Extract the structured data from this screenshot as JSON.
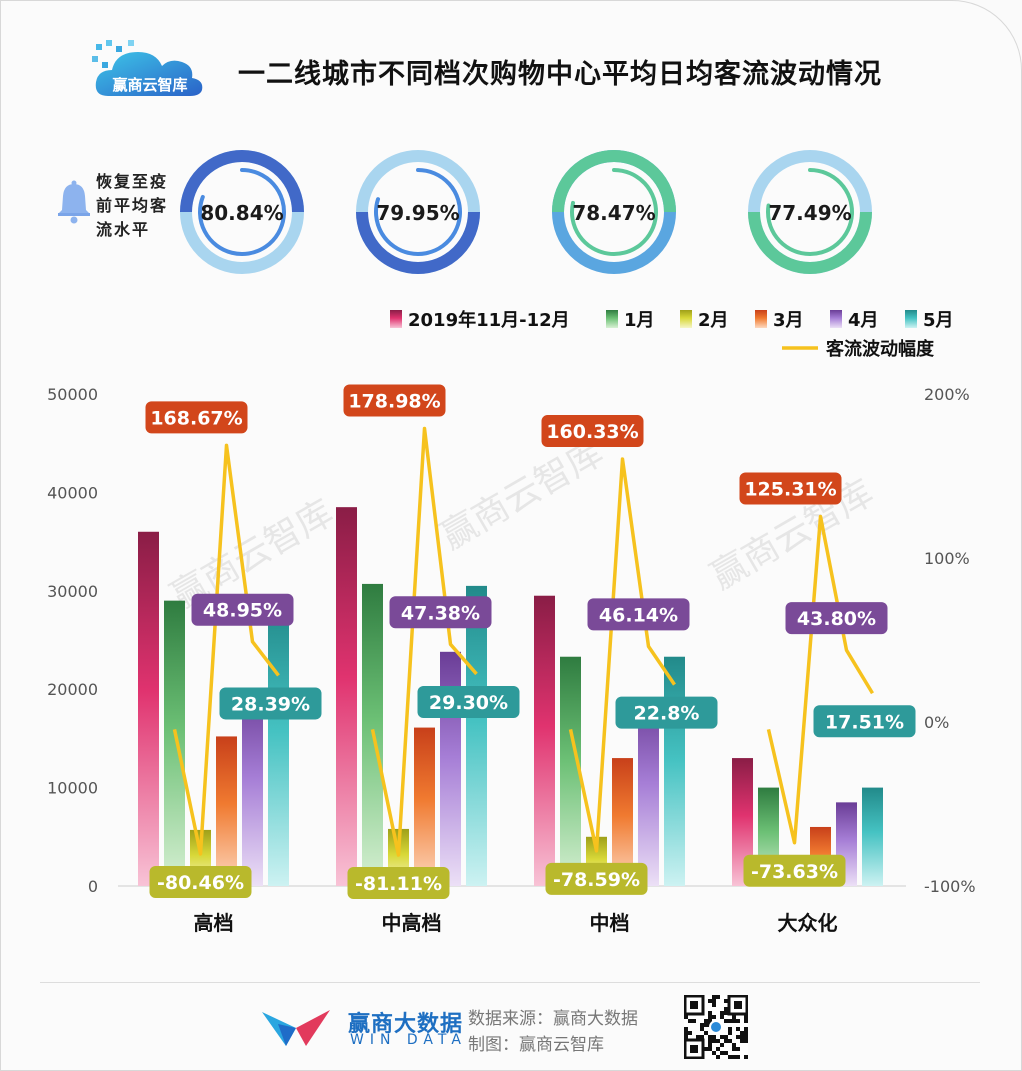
{
  "header": {
    "title": "一二线城市不同档次购物中心平均日均客流波动情况",
    "logo_text": "赢商云智库"
  },
  "recovery": {
    "label": "恢复至疫前平均客流水平",
    "gauges": [
      {
        "value": 80.84,
        "text": "80.84%",
        "outer_color": "#4169c8",
        "outer_bg": "#a9d5ef",
        "inner_color": "#4a8be0"
      },
      {
        "value": 79.95,
        "text": "79.95%",
        "outer_color": "#4169c8",
        "outer_bg": "#a9d5ef",
        "inner_color": "#4a8be0"
      },
      {
        "value": 78.47,
        "text": "78.47%",
        "outer_color": "#5cc89a",
        "outer_bg": "#5aa6e0",
        "inner_color": "#5cc89a"
      },
      {
        "value": 77.49,
        "text": "77.49%",
        "outer_color": "#5cc89a",
        "outer_bg": "#a9d5ef",
        "inner_color": "#5cc89a"
      }
    ]
  },
  "chart_data": {
    "type": "bar",
    "categories": [
      "高档",
      "中高档",
      "中档",
      "大众化"
    ],
    "series": [
      {
        "name": "2019年11月-12月",
        "colors": [
          "#8a1d46",
          "#e0336f",
          "#f8c3d6"
        ],
        "values": [
          36000,
          38500,
          29500,
          13000
        ]
      },
      {
        "name": "1月",
        "colors": [
          "#2f7c40",
          "#6cc075",
          "#d8f0d4"
        ],
        "values": [
          29000,
          30700,
          23300,
          10000
        ]
      },
      {
        "name": "2月",
        "colors": [
          "#9fa019",
          "#d8d838",
          "#f6f6c8"
        ],
        "values": [
          5700,
          5800,
          5000,
          2600
        ]
      },
      {
        "name": "3月",
        "colors": [
          "#c8401a",
          "#f07a30",
          "#fdd9c0"
        ],
        "values": [
          15200,
          16100,
          13000,
          6000
        ]
      },
      {
        "name": "4月",
        "colors": [
          "#6a3d96",
          "#a67ed6",
          "#ece0f6"
        ],
        "values": [
          20000,
          23800,
          19000,
          8500
        ]
      },
      {
        "name": "5月",
        "colors": [
          "#228a8a",
          "#45c2c2",
          "#cdf2f2"
        ],
        "values": [
          28500,
          30500,
          23300,
          10000
        ]
      }
    ],
    "line": {
      "name": "客流波动幅度",
      "color": "#f6c21e",
      "values": [
        [
          -4.5,
          -80.46,
          168.67,
          48.95,
          28.39
        ],
        [
          -4.5,
          -81.11,
          178.98,
          47.38,
          29.3
        ],
        [
          -4.5,
          -78.59,
          160.33,
          46.14,
          22.8
        ],
        [
          -4.5,
          -73.63,
          125.31,
          43.8,
          17.51
        ]
      ]
    },
    "labels": [
      [
        {
          "text": "-80.46%",
          "bg": "#b9b92c"
        },
        {
          "text": "168.67%",
          "bg": "#d2461b"
        },
        {
          "text": "48.95%",
          "bg": "#7a4a98"
        },
        {
          "text": "28.39%",
          "bg": "#2e9a9a"
        }
      ],
      [
        {
          "text": "-81.11%",
          "bg": "#b9b92c"
        },
        {
          "text": "178.98%",
          "bg": "#d2461b"
        },
        {
          "text": "47.38%",
          "bg": "#7a4a98"
        },
        {
          "text": "29.30%",
          "bg": "#2e9a9a"
        }
      ],
      [
        {
          "text": "-78.59%",
          "bg": "#b9b92c"
        },
        {
          "text": "160.33%",
          "bg": "#d2461b"
        },
        {
          "text": "46.14%",
          "bg": "#7a4a98"
        },
        {
          "text": "22.8%",
          "bg": "#2e9a9a"
        }
      ],
      [
        {
          "text": "-73.63%",
          "bg": "#b9b92c"
        },
        {
          "text": "125.31%",
          "bg": "#d2461b"
        },
        {
          "text": "43.80%",
          "bg": "#7a4a98"
        },
        {
          "text": "17.51%",
          "bg": "#2e9a9a"
        }
      ]
    ],
    "y_left": {
      "ticks": [
        "0",
        "10000",
        "20000",
        "30000",
        "40000",
        "50000"
      ],
      "ylim": [
        0,
        50000
      ]
    },
    "y_right": {
      "ticks": [
        "-100%",
        "0%",
        "100%",
        "200%"
      ],
      "ylim": [
        -100,
        200
      ]
    },
    "legend_position": "top-right"
  },
  "footer": {
    "brand": "赢商大数据",
    "brand_en": "WIN DATA",
    "source": "数据来源：赢商大数据",
    "maker": "制图：赢商云智库"
  }
}
